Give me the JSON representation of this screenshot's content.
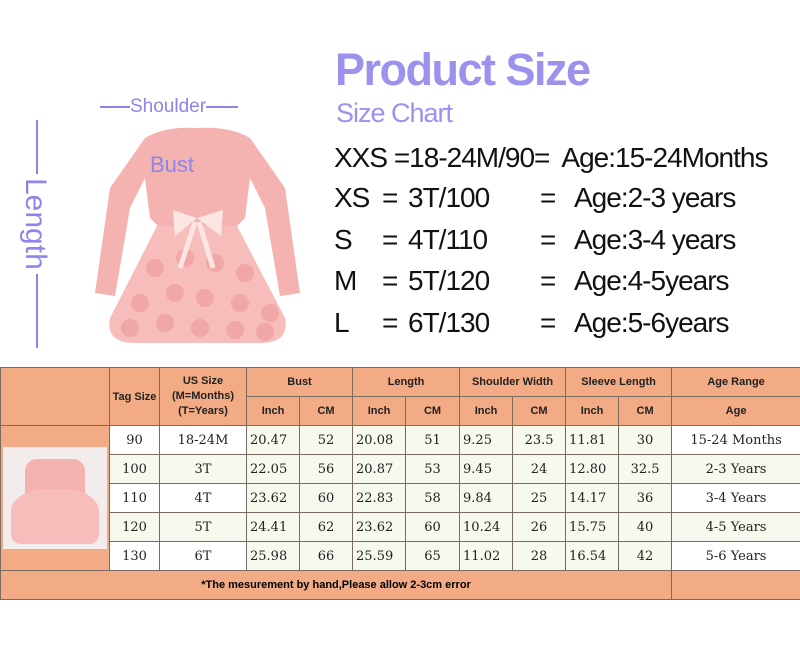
{
  "header": {
    "title": "Product Size",
    "subtitle": "Size Chart"
  },
  "diagram": {
    "shoulder": "Shoulder",
    "bust": "Bust",
    "length": "Length"
  },
  "size_lines": [
    {
      "size": "XXS",
      "eq1": "=",
      "tag": "18-24M/90",
      "eq2": "=",
      "age": "Age:15-24Months"
    },
    {
      "size": "XS",
      "eq1": "=",
      "tag": "3T/100",
      "eq2": "=",
      "age": "Age:2-3 years"
    },
    {
      "size": "S",
      "eq1": "=",
      "tag": "4T/110",
      "eq2": "=",
      "age": "Age:3-4 years"
    },
    {
      "size": "M",
      "eq1": "=",
      "tag": "5T/120",
      "eq2": "=",
      "age": "Age:4-5years"
    },
    {
      "size": "L",
      "eq1": "=",
      "tag": "6T/130",
      "eq2": "=",
      "age": "Age:5-6years"
    }
  ],
  "colors": {
    "accent": "#9b92ee",
    "table_header": "#f2ab84",
    "row_alt": "#f6f9ee",
    "dress": "#f4b2b0"
  },
  "table": {
    "headers": {
      "tag_size": "Tag Size",
      "us_size": "US Size\n(M=Months)\n(T=Years)",
      "bust": "Bust",
      "length": "Length",
      "shoulder": "Shoulder Width",
      "sleeve": "Sleeve Length",
      "age_range": "Age Range",
      "inch": "Inch",
      "cm": "CM",
      "age": "Age"
    },
    "rows": [
      [
        "90",
        "18-24M",
        "20.47",
        "52",
        "20.08",
        "51",
        "9.25",
        "23.5",
        "11.81",
        "30",
        "15-24 Months"
      ],
      [
        "100",
        "3T",
        "22.05",
        "56",
        "20.87",
        "53",
        "9.45",
        "24",
        "12.80",
        "32.5",
        "2-3 Years"
      ],
      [
        "110",
        "4T",
        "23.62",
        "60",
        "22.83",
        "58",
        "9.84",
        "25",
        "14.17",
        "36",
        "3-4 Years"
      ],
      [
        "120",
        "5T",
        "24.41",
        "62",
        "23.62",
        "60",
        "10.24",
        "26",
        "15.75",
        "40",
        "4-5 Years"
      ],
      [
        "130",
        "6T",
        "25.98",
        "66",
        "25.59",
        "65",
        "11.02",
        "28",
        "16.54",
        "42",
        "5-6 Years"
      ]
    ],
    "footnote": "*The mesurement by hand,Please allow 2-3cm error"
  }
}
